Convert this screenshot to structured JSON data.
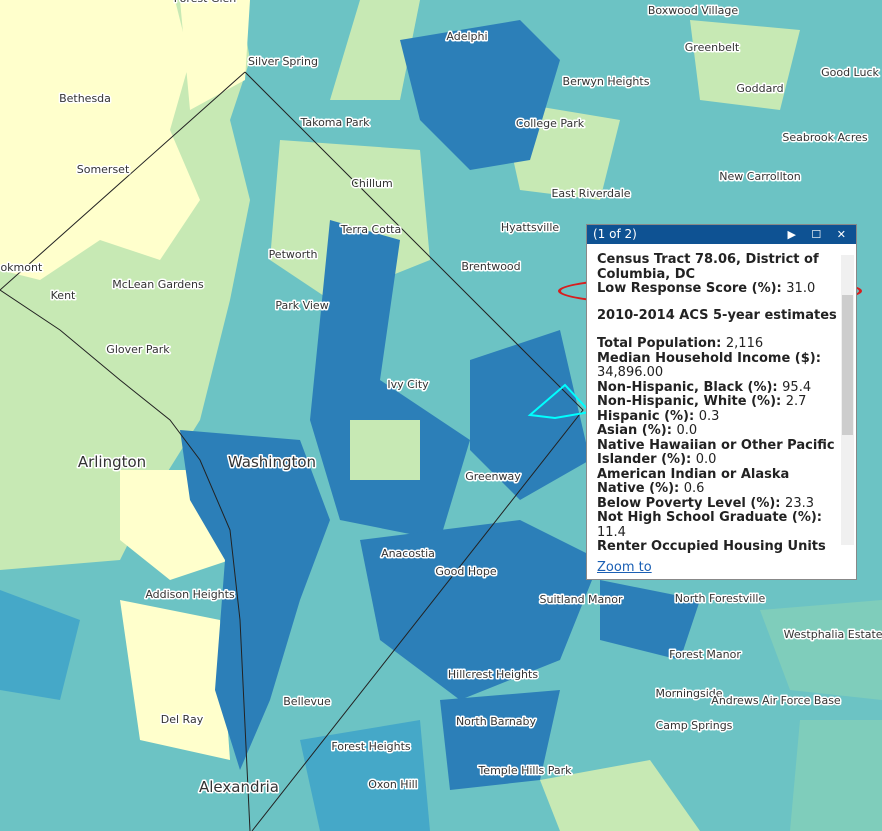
{
  "map_labels": [
    "Forest Glen",
    "Boxwood Village",
    "Adelphi",
    "Greenbelt",
    "Good Luck",
    "Silver Spring",
    "Bethesda",
    "Berwyn Heights",
    "Goddard",
    "College Park",
    "Takoma Park",
    "Seabrook Acres",
    "Somerset",
    "Chillum",
    "New Carrollton",
    "East Riverdale",
    "Terra Cotta",
    "Hyattsville",
    "Petworth",
    "Brentwood",
    "ookmont",
    "Kent",
    "McLean Gardens",
    "Park View",
    "Glover Park",
    "Ivy City",
    "Arlington",
    "Washington",
    "Greenway",
    "Anacostia",
    "Good Hope",
    "Addison Heights",
    "Suitland Manor",
    "North Forestville",
    "Westphalia Estates",
    "Forest Manor",
    "Hillcrest Heights",
    "Morningside",
    "Andrews Air Force Base",
    "Bellevue",
    "North Barnaby",
    "Camp Springs",
    "Del Ray",
    "Forest Heights",
    "Temple Hills Park",
    "Oxon Hill",
    "Alexandria"
  ],
  "popup": {
    "counter": "(1 of 2)",
    "title": "Census Tract 78.06, District of Columbia, DC",
    "score": {
      "label": "Low Response Score (%):",
      "value": "31.0"
    },
    "subtitle": "2010-2014 ACS 5-year estimates",
    "fields": [
      {
        "label": "Total Population:",
        "value": "2,116"
      },
      {
        "label": "Median Household Income ($):",
        "value": "34,896.00"
      },
      {
        "label": "Non-Hispanic, Black (%):",
        "value": "95.4"
      },
      {
        "label": "Non-Hispanic, White (%):",
        "value": "2.7"
      },
      {
        "label": "Hispanic (%):",
        "value": "0.3"
      },
      {
        "label": "Asian (%):",
        "value": "0.0"
      },
      {
        "label": "Native Hawaiian or Other Pacific Islander (%):",
        "value": "0.0"
      },
      {
        "label": "American Indian or Alaska Native (%):",
        "value": "0.6"
      },
      {
        "label": "Below Poverty Level (%):",
        "value": "23.3"
      },
      {
        "label": "Not High School Graduate (%):",
        "value": "11.4"
      },
      {
        "label": "Renter Occupied Housing Units"
      }
    ],
    "zoom": "Zoom to"
  }
}
